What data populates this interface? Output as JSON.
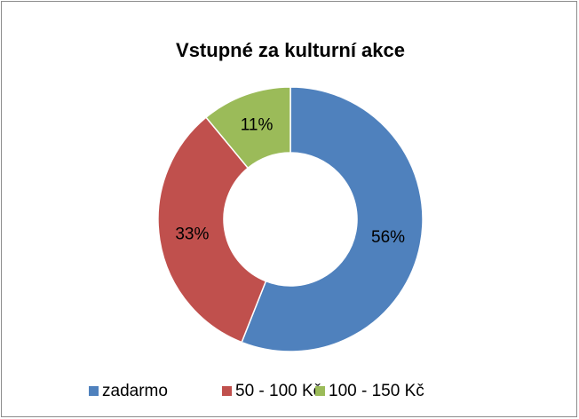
{
  "chart_data": {
    "type": "pie",
    "title": "Vstupné za kulturní akce",
    "categories": [
      "zadarmo",
      "50 - 100 Kč",
      "100 - 150 Kč"
    ],
    "values": [
      56,
      33,
      11
    ],
    "value_labels": [
      "56%",
      "33%",
      "11%"
    ],
    "colors": [
      "#4f81bd",
      "#c0504d",
      "#9bbb59"
    ],
    "legend": "bottom"
  }
}
